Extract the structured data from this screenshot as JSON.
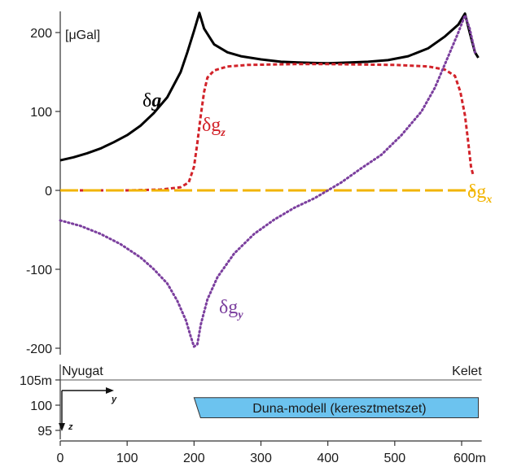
{
  "chart_data": [
    {
      "type": "line",
      "unit_label": "[μGal]",
      "x_range": [
        0,
        635
      ],
      "ylim": [
        -200,
        225
      ],
      "yticks": [
        {
          "value": 200,
          "label": "200"
        },
        {
          "value": 100,
          "label": "100"
        },
        {
          "value": 0,
          "label": "0"
        },
        {
          "value": -100,
          "label": "-100"
        },
        {
          "value": -200,
          "label": "-200"
        }
      ],
      "series": [
        {
          "name": "δg",
          "name_main": "δ",
          "name_sub": "g",
          "sub_style": "none",
          "color": "#000000",
          "dash": "solid",
          "points": [
            [
              0,
              38
            ],
            [
              20,
              42
            ],
            [
              40,
              47
            ],
            [
              60,
              53
            ],
            [
              80,
              61
            ],
            [
              100,
              70
            ],
            [
              120,
              82
            ],
            [
              140,
              98
            ],
            [
              160,
              118
            ],
            [
              180,
              150
            ],
            [
              190,
              175
            ],
            [
              200,
              202
            ],
            [
              208,
              225
            ],
            [
              215,
              205
            ],
            [
              230,
              185
            ],
            [
              250,
              175
            ],
            [
              270,
              170
            ],
            [
              300,
              166
            ],
            [
              330,
              163
            ],
            [
              360,
              162
            ],
            [
              400,
              161
            ],
            [
              430,
              162
            ],
            [
              460,
              163
            ],
            [
              490,
              165
            ],
            [
              520,
              170
            ],
            [
              550,
              180
            ],
            [
              575,
              195
            ],
            [
              595,
              210
            ],
            [
              605,
              224
            ],
            [
              612,
              200
            ],
            [
              620,
              175
            ],
            [
              625,
              168
            ]
          ]
        },
        {
          "name": "δgz",
          "name_main": "δg",
          "name_sub": "z",
          "sub_style": "subscript",
          "color": "#d2232a",
          "dash": "short",
          "points": [
            [
              0,
              0
            ],
            [
              50,
              0
            ],
            [
              100,
              0
            ],
            [
              150,
              1
            ],
            [
              180,
              4
            ],
            [
              192,
              10
            ],
            [
              200,
              30
            ],
            [
              205,
              60
            ],
            [
              210,
              95
            ],
            [
              215,
              125
            ],
            [
              220,
              143
            ],
            [
              230,
              152
            ],
            [
              250,
              157
            ],
            [
              280,
              159
            ],
            [
              350,
              160
            ],
            [
              400,
              160
            ],
            [
              500,
              159
            ],
            [
              550,
              157
            ],
            [
              575,
              153
            ],
            [
              590,
              145
            ],
            [
              598,
              125
            ],
            [
              605,
              95
            ],
            [
              610,
              60
            ],
            [
              614,
              30
            ],
            [
              617,
              20
            ]
          ]
        },
        {
          "name": "δgx",
          "name_main": "δg",
          "name_sub": "x",
          "sub_style": "subscript",
          "color": "#f2b400",
          "dash": "long",
          "points": [
            [
              0,
              0
            ],
            [
              620,
              0
            ]
          ]
        },
        {
          "name": "δgy",
          "name_main": "δg",
          "name_sub": "y",
          "sub_style": "subscript",
          "color": "#7b3f9e",
          "dash": "dot",
          "points": [
            [
              0,
              -38
            ],
            [
              30,
              -45
            ],
            [
              60,
              -55
            ],
            [
              90,
              -68
            ],
            [
              120,
              -85
            ],
            [
              140,
              -100
            ],
            [
              160,
              -118
            ],
            [
              175,
              -140
            ],
            [
              188,
              -165
            ],
            [
              195,
              -185
            ],
            [
              200,
              -198
            ],
            [
              205,
              -195
            ],
            [
              210,
              -170
            ],
            [
              220,
              -138
            ],
            [
              235,
              -110
            ],
            [
              260,
              -80
            ],
            [
              290,
              -55
            ],
            [
              320,
              -37
            ],
            [
              350,
              -22
            ],
            [
              380,
              -10
            ],
            [
              400,
              0
            ],
            [
              420,
              10
            ],
            [
              450,
              28
            ],
            [
              480,
              45
            ],
            [
              510,
              70
            ],
            [
              540,
              100
            ],
            [
              560,
              130
            ],
            [
              580,
              170
            ],
            [
              595,
              200
            ],
            [
              605,
              222
            ],
            [
              612,
              205
            ],
            [
              620,
              175
            ]
          ]
        }
      ]
    },
    {
      "type": "diagram",
      "left_label": "Nyugat",
      "right_label": "Kelet",
      "yticks": [
        {
          "value": 105,
          "label": "105m"
        },
        {
          "value": 100,
          "label": "100"
        },
        {
          "value": 95,
          "label": "95"
        }
      ],
      "xticks": [
        {
          "value": 0,
          "label": "0"
        },
        {
          "value": 100,
          "label": "100"
        },
        {
          "value": 200,
          "label": "200"
        },
        {
          "value": 300,
          "label": "300"
        },
        {
          "value": 400,
          "label": "400"
        },
        {
          "value": 500,
          "label": "500"
        },
        {
          "value": 600,
          "label": "600m"
        }
      ],
      "axis_y_label": "y",
      "axis_z_label": "z",
      "model_label": "Duna-modell (keresztmetszet)",
      "model_color": "#6cc3ef",
      "model_range": {
        "x": [
          200,
          625
        ],
        "z": [
          97.5,
          101.5
        ]
      }
    }
  ]
}
